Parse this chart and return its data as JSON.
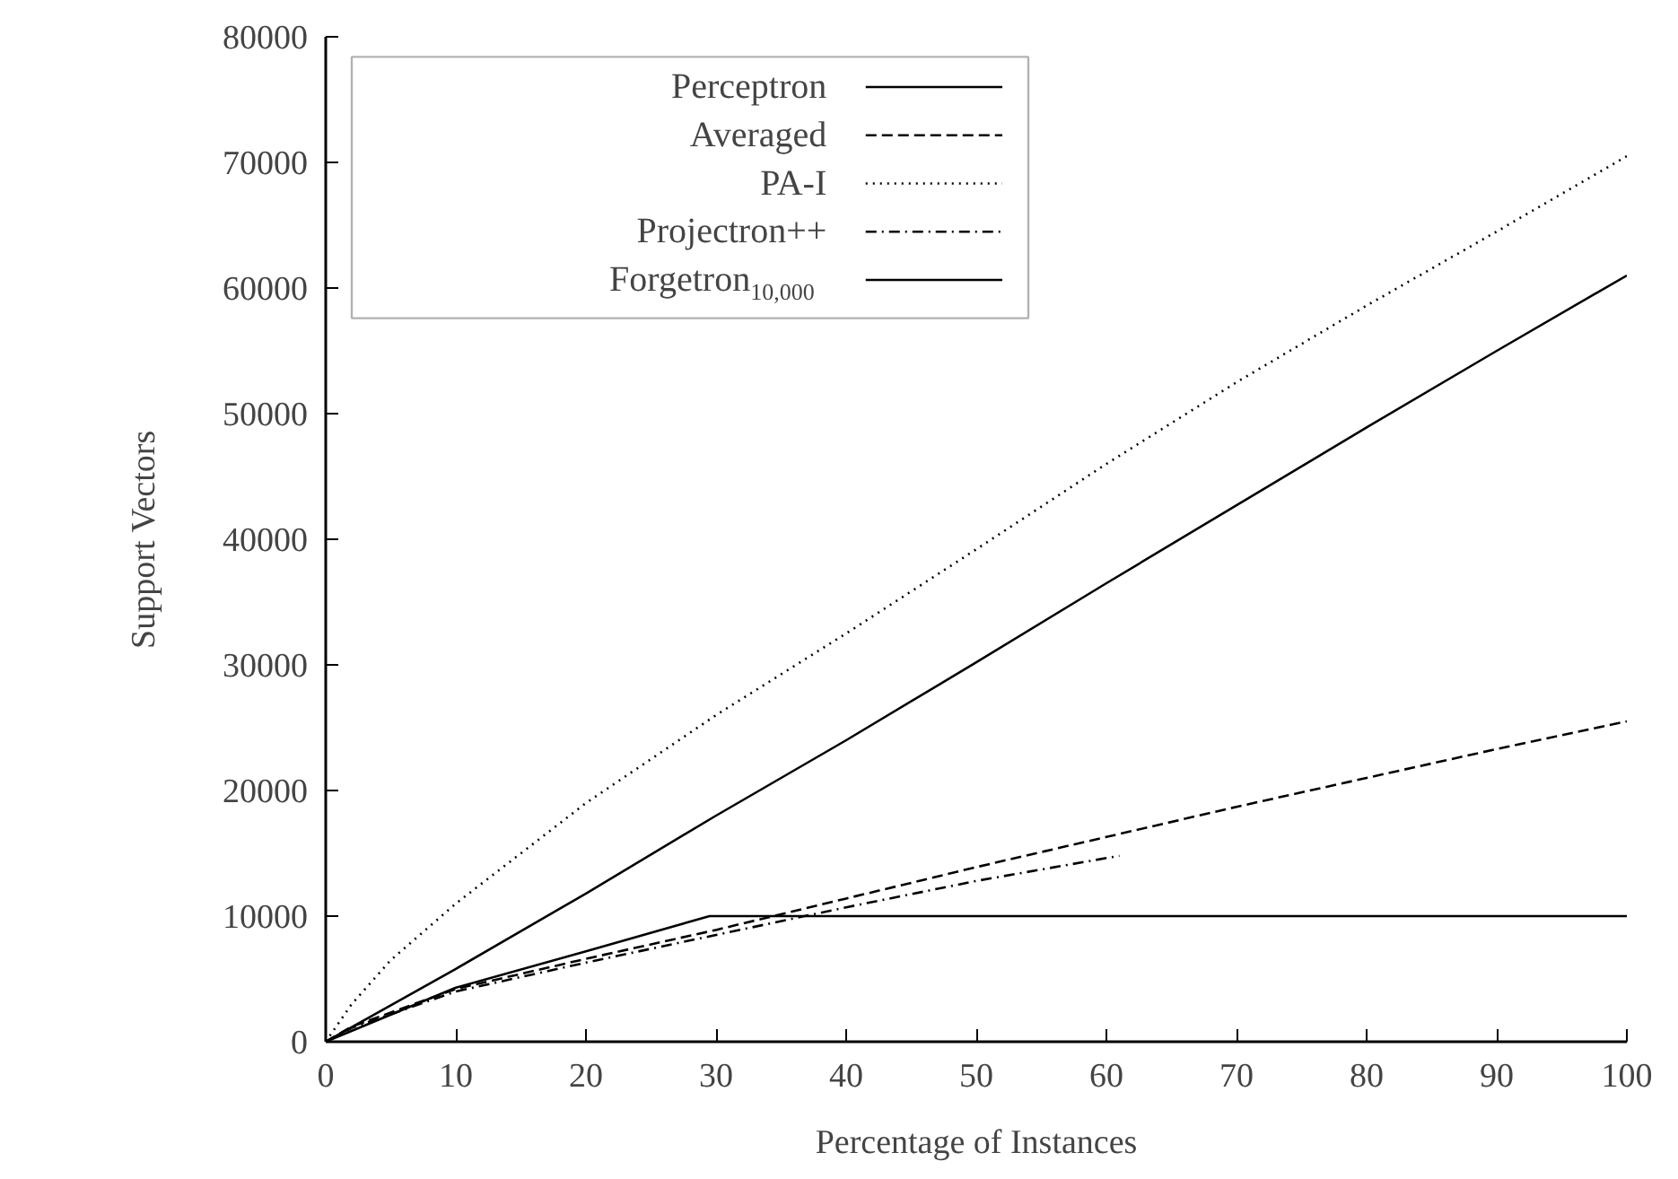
{
  "chart_data": {
    "type": "line",
    "xlabel": "Percentage of Instances",
    "ylabel": "Support Vectors",
    "xlim": [
      0,
      100
    ],
    "ylim": [
      0,
      80000
    ],
    "xticks": [
      0,
      10,
      20,
      30,
      40,
      50,
      60,
      70,
      80,
      90,
      100
    ],
    "yticks": [
      0,
      10000,
      20000,
      30000,
      40000,
      50000,
      60000,
      70000,
      80000
    ],
    "grid": false,
    "legend": "top left",
    "series": [
      {
        "name": "Perceptron",
        "color": "#000000",
        "line_style": "solid",
        "x": [
          0,
          10,
          20,
          30,
          40,
          50,
          60,
          70,
          80,
          90,
          100
        ],
        "values": [
          0,
          5800,
          11800,
          18000,
          24000,
          30200,
          36500,
          42700,
          48900,
          55000,
          61000
        ]
      },
      {
        "name": "Averaged",
        "color": "#000000",
        "line_style": "dashed",
        "x": [
          0,
          2,
          10,
          20,
          30,
          40,
          50,
          60,
          70,
          80,
          90,
          100
        ],
        "values": [
          0,
          1200,
          4200,
          6600,
          8900,
          11400,
          13900,
          16300,
          18700,
          21000,
          23300,
          25500
        ]
      },
      {
        "name": "PA-I",
        "color": "#000000",
        "line_style": "dotted",
        "x": [
          0,
          2,
          5,
          10,
          15,
          20,
          30,
          40,
          50,
          60,
          70,
          80,
          90,
          100
        ],
        "values": [
          0,
          3000,
          6500,
          11000,
          15000,
          19000,
          26000,
          32500,
          39200,
          46000,
          52500,
          58600,
          64500,
          70500
        ]
      },
      {
        "name": "Projectron++",
        "color": "#000000",
        "line_style": "dashdot",
        "x": [
          0,
          2,
          10,
          20,
          30,
          40,
          50,
          61
        ],
        "values": [
          0,
          1100,
          4000,
          6300,
          8500,
          10700,
          12800,
          14800
        ]
      },
      {
        "name": "Forgetron$_{10,000}$",
        "color": "#000000",
        "line_style": "solid",
        "x": [
          0,
          10,
          20,
          29.5,
          100
        ],
        "values": [
          0,
          4300,
          7200,
          10000,
          10000
        ]
      }
    ]
  }
}
